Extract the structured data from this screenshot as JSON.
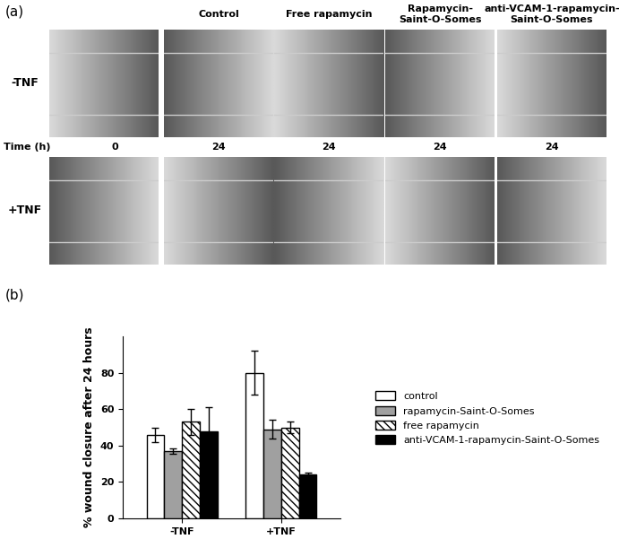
{
  "chart_data": {
    "type": "bar",
    "categories": [
      "-TNF",
      "+TNF"
    ],
    "y_label": "% wound closure after 24 hours",
    "ylim": [
      0,
      100
    ],
    "yticks": [
      0,
      20,
      40,
      60,
      80
    ],
    "legend": "center left",
    "series": [
      {
        "name": "control",
        "color": "#ffffff",
        "values": [
          46,
          80
        ],
        "errors": [
          4,
          12
        ]
      },
      {
        "name": "rapamycin-Saint-O-Somes",
        "color": "#a0a0a0",
        "values": [
          37,
          49
        ],
        "errors": [
          1.5,
          5
        ]
      },
      {
        "name": "free rapamycin",
        "color": "#ffffff",
        "values": [
          53,
          50
        ],
        "errors": [
          7,
          3
        ]
      },
      {
        "name": "anti-VCAM-1-rapamycin-Saint-O-Somes",
        "color": "#000000",
        "values": [
          48,
          24
        ],
        "errors": [
          13,
          1
        ]
      }
    ]
  },
  "panel_a": {
    "label": "(a)",
    "columns": [
      "Control",
      "Free rapamycin",
      "Rapamycin-\nSaint-O-Somes",
      "anti-VCAM-1-rapamycin-\nSaint-O-Somes"
    ],
    "rows": [
      "-TNF",
      "+TNF"
    ],
    "time_label": "Time (h)",
    "times": [
      0,
      24,
      24,
      24,
      24
    ]
  },
  "panel_b_label": "(b)"
}
